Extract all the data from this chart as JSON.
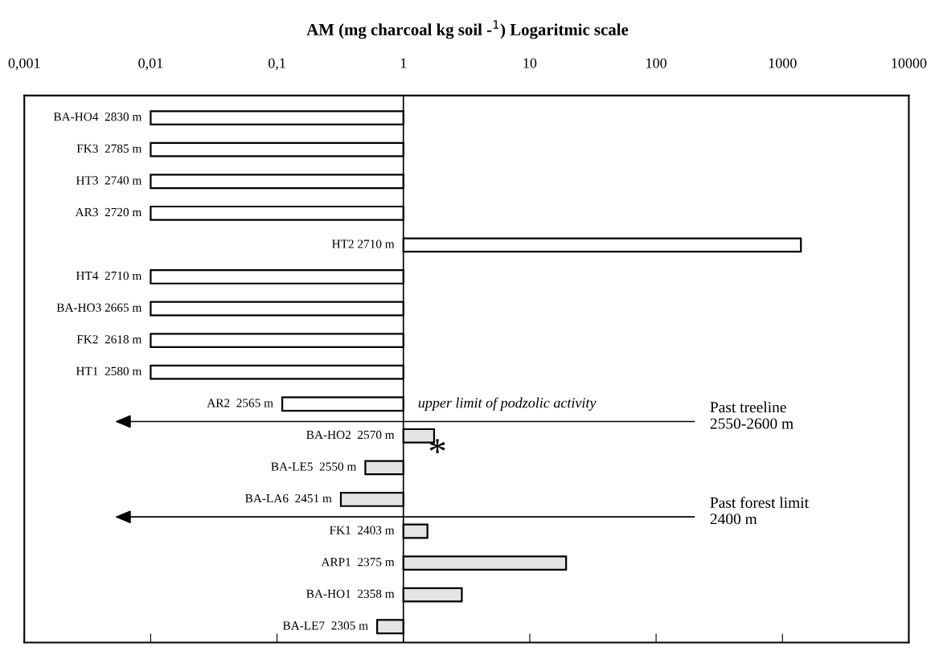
{
  "chart_data": {
    "type": "bar",
    "orientation": "horizontal",
    "title": "AM (mg charcoal kg soil -$^{1}$) Logaritmic scale",
    "log": "x",
    "categories": [
      "BA-HO4  2830 m",
      "FK3  2785 m",
      "HT3  2740 m",
      "AR3  2720 m",
      "HT2 2710 m",
      "HT4  2710 m",
      "BA-HO3 2665 m",
      "FK2  2618 m",
      "HT1  2580 m",
      "AR2  2565 m",
      "BA-HO2  2570 m",
      "BA-LE5  2550 m",
      "BA-LA6  2451 m",
      "FK1  2403 m",
      "ARP1  2375 m",
      "BA-HO1  2358 m",
      "BA-LE7  2305 m"
    ],
    "base": [
      1,
      1,
      1,
      1,
      1,
      1,
      1,
      1,
      1,
      1,
      1,
      1,
      1,
      1,
      1,
      1,
      1
    ],
    "values": [
      -0.99,
      -0.99,
      -0.99,
      -0.99,
      1399,
      -0.99,
      -0.99,
      -0.99,
      -0.99,
      -0.89,
      0.75,
      -0.5,
      -0.68,
      0.55,
      18.4,
      1.9,
      -0.38
    ],
    "colors": [
      "#ffffff",
      "#ffffff",
      "#ffffff",
      "#ffffff",
      "#ffffff",
      "#ffffff",
      "#ffffff",
      "#ffffff",
      "#ffffff",
      "#ffffff",
      "#e4e4e4",
      "#e4e4e4",
      "#e4e4e4",
      "#e4e4e4",
      "#e4e4e4",
      "#e4e4e4",
      "#e4e4e4"
    ],
    "xlim": [
      0.001,
      10000
    ],
    "xticks": [
      {
        "value": 0.001,
        "label": "0,001"
      },
      {
        "value": 0.01,
        "label": "0,01"
      },
      {
        "value": 0.1,
        "label": "0,1"
      },
      1,
      10,
      100,
      1000,
      10000
    ],
    "ref_lines": [
      {
        "axis": "x",
        "value": 1,
        "color": "#000000"
      }
    ],
    "annotations": [
      "upper limit of podzolic activity",
      "Past treeline\n2550-2600 m",
      "Past forest limit\n2400 m",
      "*"
    ],
    "grid": false,
    "legend": false
  }
}
